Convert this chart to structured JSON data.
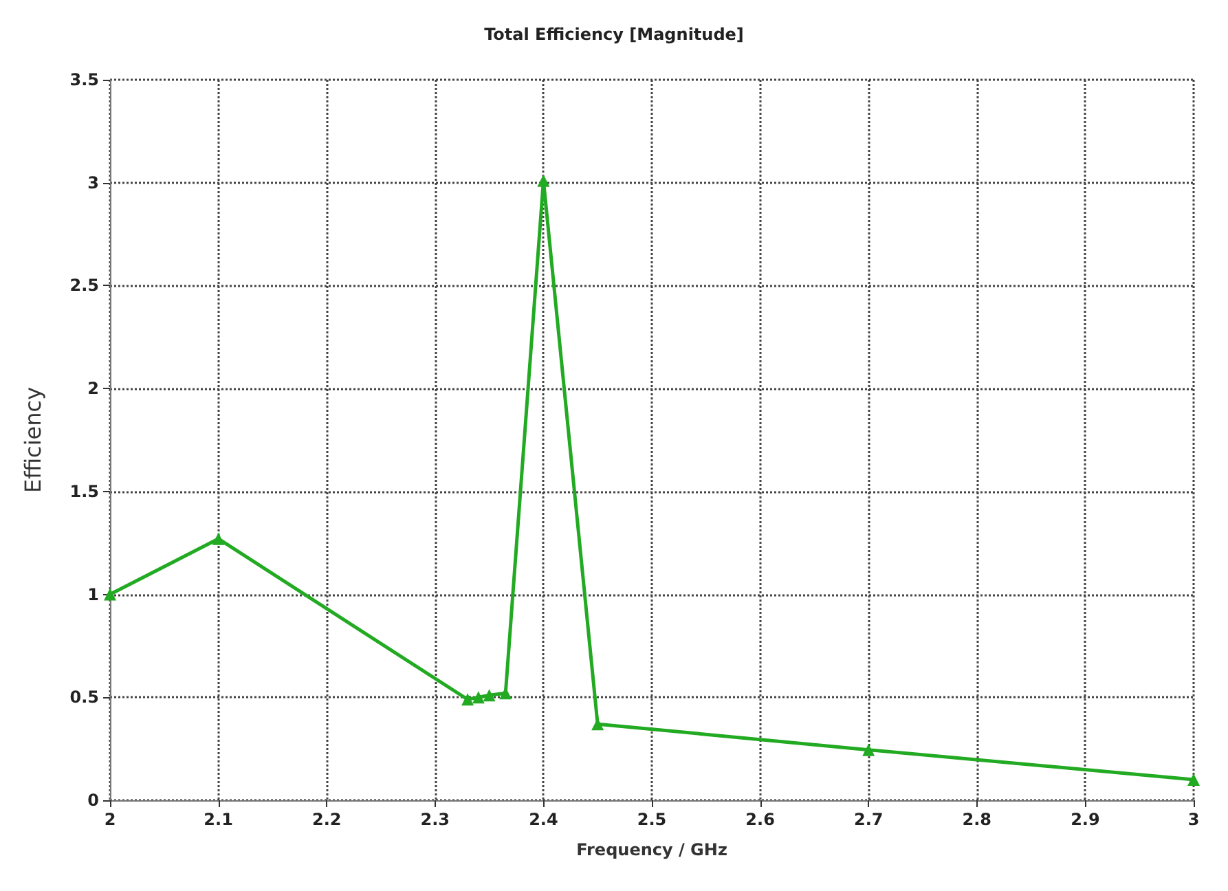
{
  "chart_data": {
    "type": "line",
    "title": "Total Efficiency [Magnitude]",
    "xlabel": "Frequency / GHz",
    "ylabel": "Efficiency",
    "x": [
      2,
      2.1,
      2.33,
      2.34,
      2.35,
      2.365,
      2.4,
      2.45,
      2.7,
      3
    ],
    "series": [
      {
        "color": "#22aa22",
        "values": [
          1.0,
          1.27,
          0.49,
          0.5,
          0.51,
          0.52,
          3.01,
          0.37,
          0.245,
          0.1
        ]
      }
    ],
    "xlim": [
      2,
      3
    ],
    "xticks": [
      2,
      2.1,
      2.2,
      2.3,
      2.4,
      2.5,
      2.6,
      2.7,
      2.8,
      2.9,
      3
    ],
    "ylim": [
      0,
      3.5
    ],
    "yticks": [
      0,
      0.5,
      1,
      1.5,
      2,
      2.5,
      3,
      3.5
    ],
    "grid": true,
    "marker": "triangle",
    "line_style": "solid"
  }
}
